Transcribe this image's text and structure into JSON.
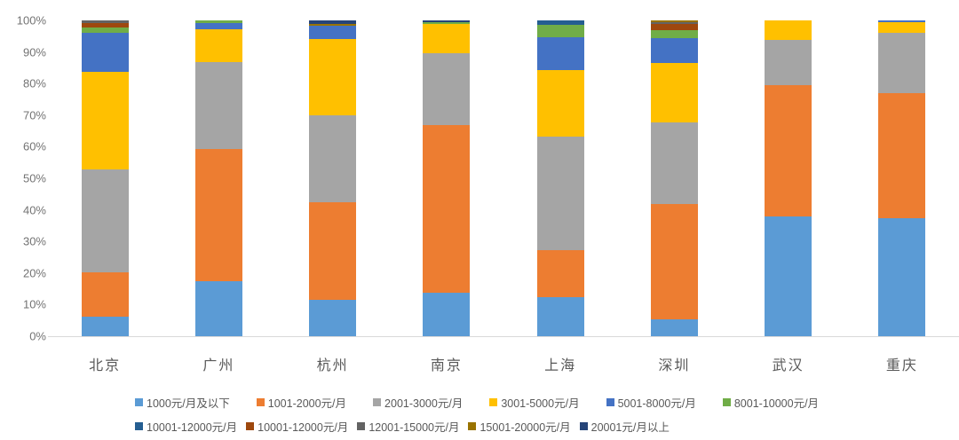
{
  "chart_data": {
    "type": "bar",
    "variant": "stacked-100-percent-column",
    "grid": false,
    "legend_position": "bottom",
    "categories": [
      "北京",
      "广州",
      "杭州",
      "南京",
      "上海",
      "深圳",
      "武汉",
      "重庆"
    ],
    "y_axis": {
      "min": 0,
      "max": 100,
      "step": 10,
      "tick_labels": [
        "0%",
        "10%",
        "20%",
        "30%",
        "40%",
        "50%",
        "60%",
        "70%",
        "80%",
        "90%",
        "100%"
      ]
    },
    "series": [
      {
        "name": "1000元/月及以下",
        "color": "#5B9BD5",
        "legend_row": 1,
        "values": [
          6.3,
          17.4,
          11.5,
          13.8,
          12.3,
          5.4,
          38.0,
          37.5
        ]
      },
      {
        "name": "1001-2000元/月",
        "color": "#ED7D31",
        "legend_row": 1,
        "values": [
          13.9,
          41.9,
          30.9,
          53.1,
          14.9,
          36.5,
          41.4,
          39.6
        ]
      },
      {
        "name": "2001-3000元/月",
        "color": "#A5A5A5",
        "legend_row": 1,
        "values": [
          32.7,
          27.6,
          27.6,
          22.8,
          36.1,
          25.8,
          14.3,
          19.0
        ]
      },
      {
        "name": "3001-5000元/月",
        "color": "#FFC000",
        "legend_row": 1,
        "values": [
          30.9,
          10.3,
          24.1,
          9.1,
          21.0,
          18.9,
          6.3,
          3.3
        ]
      },
      {
        "name": "5001-8000元/月",
        "color": "#4472C4",
        "legend_row": 1,
        "values": [
          12.2,
          2.1,
          4.2,
          0,
          10.4,
          7.8,
          0,
          0.6
        ]
      },
      {
        "name": "8001-10000元/月",
        "color": "#70AD47",
        "legend_row": 1,
        "values": [
          1.8,
          0.7,
          0,
          0.6,
          3.9,
          2.5,
          0,
          0
        ]
      },
      {
        "name": "10001-12000元/月",
        "color": "#255E91",
        "legend_row": 2,
        "values": [
          0,
          0,
          0,
          0,
          1.4,
          0,
          0,
          0
        ]
      },
      {
        "name": "10001-12000元/月",
        "color": "#9E480E",
        "legend_row": 2,
        "values": [
          1.4,
          0,
          0,
          0,
          0,
          2.0,
          0,
          0
        ]
      },
      {
        "name": "12001-15000元/月",
        "color": "#636363",
        "legend_row": 2,
        "values": [
          0.8,
          0,
          0,
          0,
          0,
          0.5,
          0,
          0
        ]
      },
      {
        "name": "15001-20000元/月",
        "color": "#997300",
        "legend_row": 2,
        "values": [
          0,
          0,
          0.6,
          0,
          0,
          0.6,
          0,
          0
        ]
      },
      {
        "name": "20001元/月以上",
        "color": "#264478",
        "legend_row": 2,
        "values": [
          0,
          0,
          1.1,
          0.6,
          0,
          0,
          0,
          0
        ]
      }
    ]
  },
  "layout_colors": {
    "background": "#FFFFFF",
    "axis_line": "#D9D9D9",
    "tick_text": "#737373",
    "category_text": "#595959",
    "legend_text": "#595959"
  }
}
